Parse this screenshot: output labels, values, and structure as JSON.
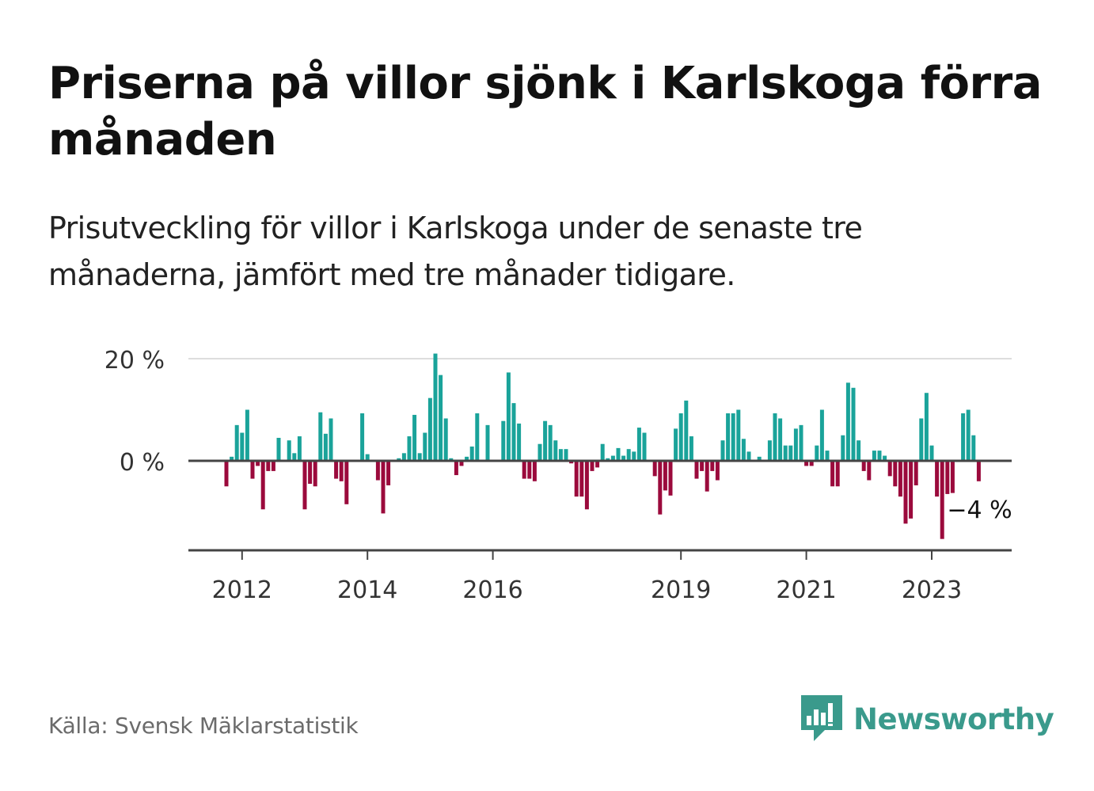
{
  "title": "Priserna på villor sjönk i Karlskoga förra månaden",
  "subtitle": "Prisutveckling för villor i Karlskoga under de senaste tre månaderna, jämfört med tre månader tidigare.",
  "source": "Källa: Svensk Mäklarstatistik",
  "brand": {
    "name": "Newsworthy",
    "icon": "newsworthy-logo-icon",
    "color": "#3a9a8c"
  },
  "colors": {
    "positive": "#1aa39a",
    "negative": "#9b0a3c",
    "axis": "#444444",
    "grid": "#dddddd"
  },
  "chart_data": {
    "type": "bar",
    "x_start": "2011-10",
    "x_step": "month",
    "x_tick_labels": [
      "2012",
      "2014",
      "2016",
      "2019",
      "2021",
      "2023"
    ],
    "x_tick_dates": [
      "2012-01",
      "2014-01",
      "2016-01",
      "2019-01",
      "2021-01",
      "2023-01"
    ],
    "y_tick_labels": [
      "20 %",
      "0 %"
    ],
    "y_ticks": [
      20,
      0
    ],
    "ylim": [
      -18,
      20
    ],
    "grid": true,
    "annotation": {
      "text": "−4 %",
      "date": "2023-10",
      "value": -4
    },
    "values": [
      -5,
      0.8,
      7,
      5.5,
      10,
      -3.5,
      -1,
      -9.5,
      -2,
      -2,
      4.5,
      0,
      4,
      1.5,
      4.8,
      -9.5,
      -4.5,
      -5,
      9.5,
      5.3,
      8.3,
      -3.5,
      -4,
      -8.5,
      0,
      0,
      9.3,
      1.3,
      0,
      -3.8,
      -10.3,
      -4.8,
      0,
      0.5,
      1.5,
      4.8,
      9,
      1.5,
      5.5,
      12.3,
      21,
      16.8,
      8.3,
      0.5,
      -2.8,
      -1,
      0.8,
      2.8,
      9.3,
      0,
      7,
      0,
      0,
      7.8,
      17.3,
      11.3,
      7.3,
      -3.5,
      -3.5,
      -4,
      3.3,
      7.8,
      7,
      4,
      2.3,
      2.3,
      -0.5,
      -7,
      -7,
      -9.5,
      -2,
      -1.3,
      3.3,
      0.5,
      1,
      2.5,
      1,
      2.3,
      1.8,
      6.5,
      5.5,
      0,
      -3,
      -10.5,
      -5.8,
      -6.8,
      6.3,
      9.3,
      11.8,
      4.8,
      -3.5,
      -2,
      -6,
      -2,
      -3.8,
      4,
      9.3,
      9.3,
      10,
      4.3,
      1.8,
      0,
      0.8,
      0,
      4,
      9.3,
      8.3,
      3,
      3,
      6.3,
      7,
      -1,
      -1,
      3,
      10,
      2,
      -5,
      -5,
      5,
      15.3,
      14.3,
      4,
      -2,
      -3.8,
      2,
      2,
      1,
      -3,
      -5,
      -7,
      -12.3,
      -11.3,
      -4.8,
      8.3,
      13.3,
      3,
      -7,
      -15.3,
      -6.5,
      -6.3,
      0,
      9.3,
      10,
      5,
      -4
    ]
  }
}
